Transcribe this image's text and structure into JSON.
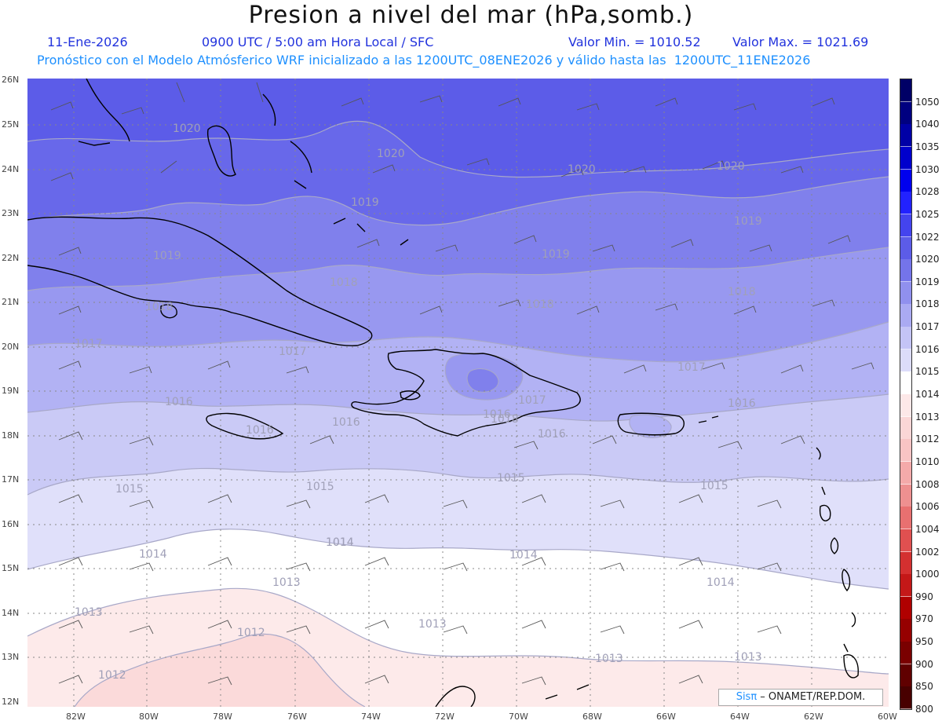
{
  "header": {
    "title": "Presion a nivel del mar (hPa,somb.)",
    "date": "11-Ene-2026",
    "time": "0900 UTC / 5:00 am Hora Local / SFC",
    "min": "Valor Min. = 1010.52",
    "max": "Valor Max. = 1021.69",
    "forecast": "Pronóstico con el Modelo Atmósferico WRF inicializado a las 1200UTC_08ENE2026 y válido hasta las  1200UTC_11ENE2026"
  },
  "axes": {
    "lat_labels": [
      "26N",
      "25N",
      "24N",
      "23N",
      "22N",
      "21N",
      "20N",
      "19N",
      "18N",
      "17N",
      "16N",
      "15N",
      "14N",
      "13N",
      "12N"
    ],
    "lon_labels": [
      "82W",
      "80W",
      "78W",
      "76W",
      "74W",
      "72W",
      "70W",
      "68W",
      "66W",
      "64W",
      "62W",
      "60W"
    ]
  },
  "legend": {
    "levels": [
      "1050",
      "1040",
      "1035",
      "1030",
      "1028",
      "1025",
      "1022",
      "1020",
      "1019",
      "1018",
      "1017",
      "1016",
      "1015",
      "1014",
      "1013",
      "1012",
      "1010",
      "1008",
      "1006",
      "1004",
      "1002",
      "1000",
      "990",
      "970",
      "950",
      "900",
      "850",
      "800"
    ],
    "colors": [
      "#000066",
      "#000080",
      "#0000a6",
      "#0000cc",
      "#0000ee",
      "#2222ff",
      "#4444ee",
      "#5c5ce8",
      "#7474ea",
      "#9090ee",
      "#aaaaf2",
      "#c4c4f6",
      "#dcdcfa",
      "#ffffff",
      "#fde8e8",
      "#fbd6d6",
      "#f8c4c4",
      "#f4aaaa",
      "#ee9090",
      "#e87070",
      "#e05050",
      "#d43030",
      "#c41818",
      "#b00000",
      "#960000",
      "#7a0000",
      "#600000",
      "#480000"
    ]
  },
  "credit": {
    "brand": "Sisπ",
    "org": " – ONAMET/REP.DOM."
  },
  "isobars": {
    "labels": [
      "1020",
      "1020",
      "1020",
      "1020",
      "1019",
      "1019",
      "1019",
      "1019",
      "1018",
      "1018",
      "1018",
      "1018",
      "1018",
      "1017",
      "1017",
      "1017",
      "1017",
      "1016",
      "1016",
      "1016",
      "1016",
      "1016",
      "1016",
      "1015",
      "1015",
      "1015",
      "1015",
      "1014",
      "1014",
      "1014",
      "1014",
      "1014",
      "1013",
      "1013",
      "1013",
      "1013",
      "1013",
      "1012",
      "1012"
    ]
  }
}
